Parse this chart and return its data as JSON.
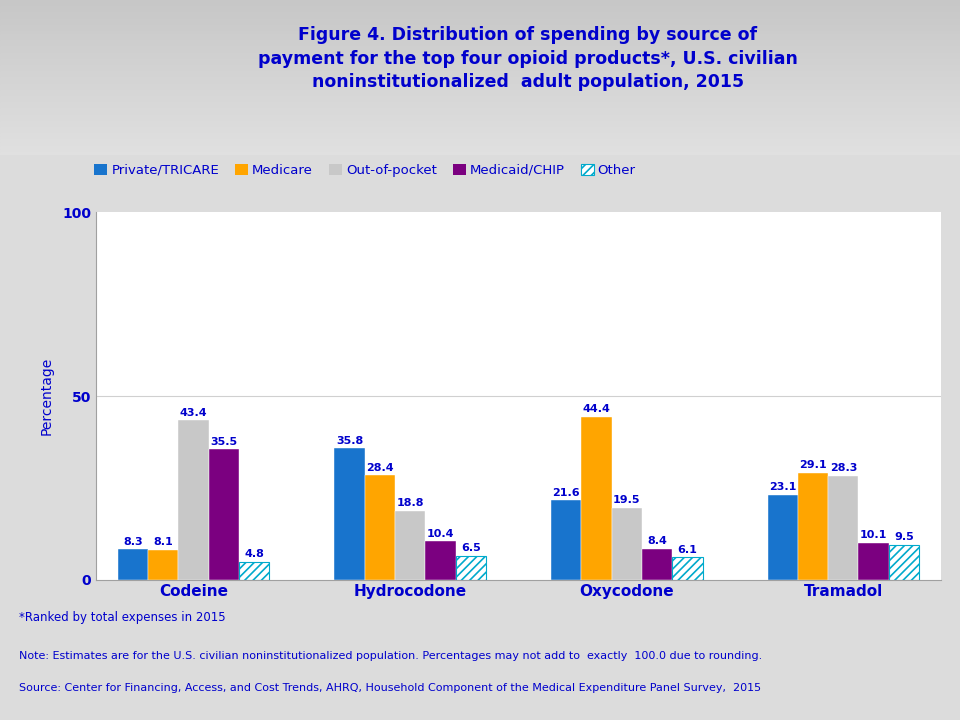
{
  "title_line1": "Figure 4. Distribution of spending by source of",
  "title_line2": "payment for the top four opioid products*, U.S. civilian",
  "title_line3": "noninstitutionalized  adult population, 2015",
  "ylabel": "Percentage",
  "categories": [
    "Codeine",
    "Hydrocodone",
    "Oxycodone",
    "Tramadol"
  ],
  "series_names": [
    "Private/TRICARE",
    "Medicare",
    "Out-of-pocket",
    "Medicaid/CHIP",
    "Other"
  ],
  "series": {
    "Private/TRICARE": [
      8.3,
      35.8,
      21.6,
      23.1
    ],
    "Medicare": [
      8.1,
      28.4,
      44.4,
      29.1
    ],
    "Out-of-pocket": [
      43.4,
      18.8,
      19.5,
      28.3
    ],
    "Medicaid/CHIP": [
      35.5,
      10.4,
      8.4,
      10.1
    ],
    "Other": [
      4.8,
      6.5,
      6.1,
      9.5
    ]
  },
  "bar_colors": {
    "Private/TRICARE": "#1874CD",
    "Medicare": "#FFA500",
    "Out-of-pocket": "#C8C8C8",
    "Medicaid/CHIP": "#7B0080",
    "Other": "#FFFFFF"
  },
  "other_hatch_color": "#00AACC",
  "ylim": [
    0,
    100
  ],
  "yticks": [
    0,
    50,
    100
  ],
  "text_color": "#0000CC",
  "bar_label_color": "#0000CC",
  "header_bg_top": "#BEBEBE",
  "header_bg_bottom": "#E8E8E8",
  "plot_bg_color": "#FFFFFF",
  "footer_bg_color": "#FFFFFF",
  "separator_color": "#A0A0A0",
  "footer_line1": "*Ranked by total expenses in 2015",
  "footer_line2": "Note: Estimates are for the U.S. civilian noninstitutionalized population. Percentages may not add to  exactly  100.0 due to rounding.",
  "footer_line3": "Source: Center for Financing, Access, and Cost Trends, AHRQ, Household Component of the Medical Expenditure Panel Survey,  2015"
}
